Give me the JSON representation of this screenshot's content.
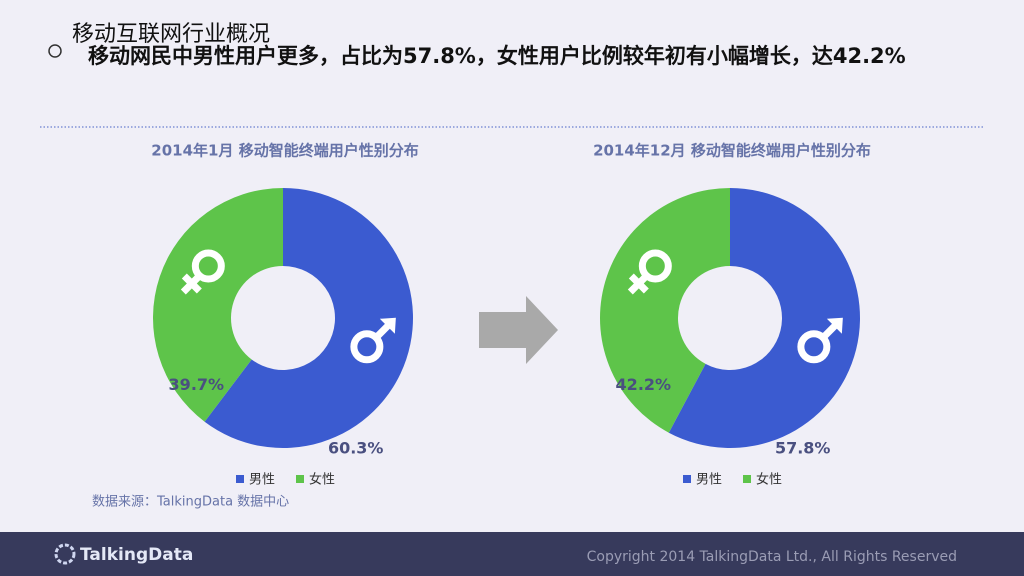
{
  "header": {
    "title": "移动互联网行业概况",
    "subtitle": "移动网民中男性用户更多，占比为57.8%，女性用户比例较年初有小幅增长，达42.2%"
  },
  "chart_data": [
    {
      "type": "donut",
      "title": "2014年1月 移动智能终端用户性别分布",
      "categories": [
        "男性",
        "女性"
      ],
      "values": [
        60.3,
        39.7
      ],
      "value_labels": [
        "60.3%",
        "39.7%"
      ],
      "colors": [
        "#3b5bd0",
        "#5ec44a"
      ]
    },
    {
      "type": "donut",
      "title": "2014年12月 移动智能终端用户性别分布",
      "categories": [
        "男性",
        "女性"
      ],
      "values": [
        57.8,
        42.2
      ],
      "value_labels": [
        "57.8%",
        "42.2%"
      ],
      "colors": [
        "#3b5bd0",
        "#5ec44a"
      ]
    }
  ],
  "source": "数据来源：TalkingData 数据中心",
  "footer": {
    "logo": "TalkingData",
    "copyright": "Copyright 2014 TalkingData Ltd., All Rights Reserved"
  }
}
